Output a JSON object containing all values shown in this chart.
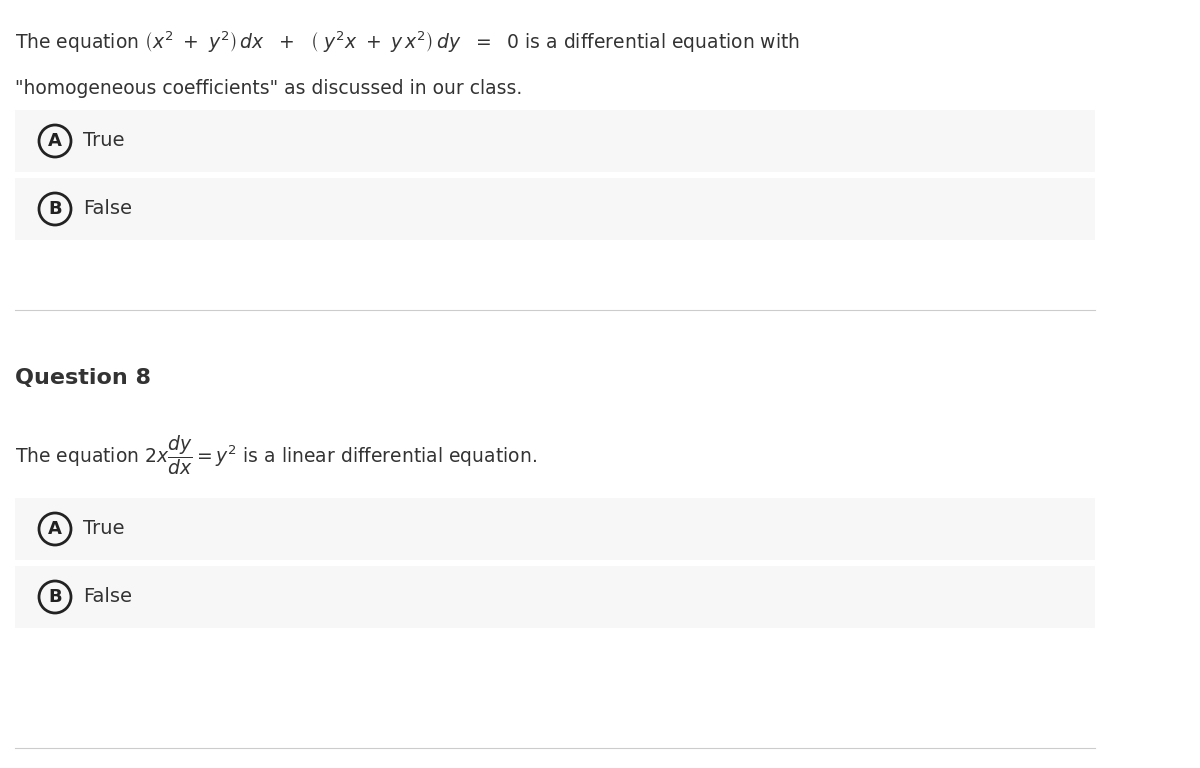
{
  "bg_color": "#ffffff",
  "option_bg_color": "#f7f7f7",
  "divider_color": "#cccccc",
  "text_color": "#333333",
  "circle_edge_color": "#222222",
  "circle_label_color": "#222222",
  "option_text_color": "#333333",
  "q7_line1_plain": "The equation",
  "q7_line1_math": "$\\left( x^2\\ +\\ y^2\\right)\\, dx\\ +\\ \\left(\\ y^2 x\\ +\\ y\\, x^2\\right)\\, dy\\ =\\ 0$",
  "q7_line1_suffix": "is a differential equation with",
  "q7_line2": "\"homogeneous coefficients\" as discussed in our class.",
  "q7_optA": "True",
  "q7_optB": "False",
  "q8_label": "Question 8",
  "q8_line_plain": "The equation",
  "q8_line_math": "$2x\\dfrac{dy}{dx} = y^2$",
  "q8_line_suffix": "is a linear differential equation.",
  "q8_optA": "True",
  "q8_optB": "False",
  "figwidth": 12.0,
  "figheight": 7.68,
  "dpi": 100
}
